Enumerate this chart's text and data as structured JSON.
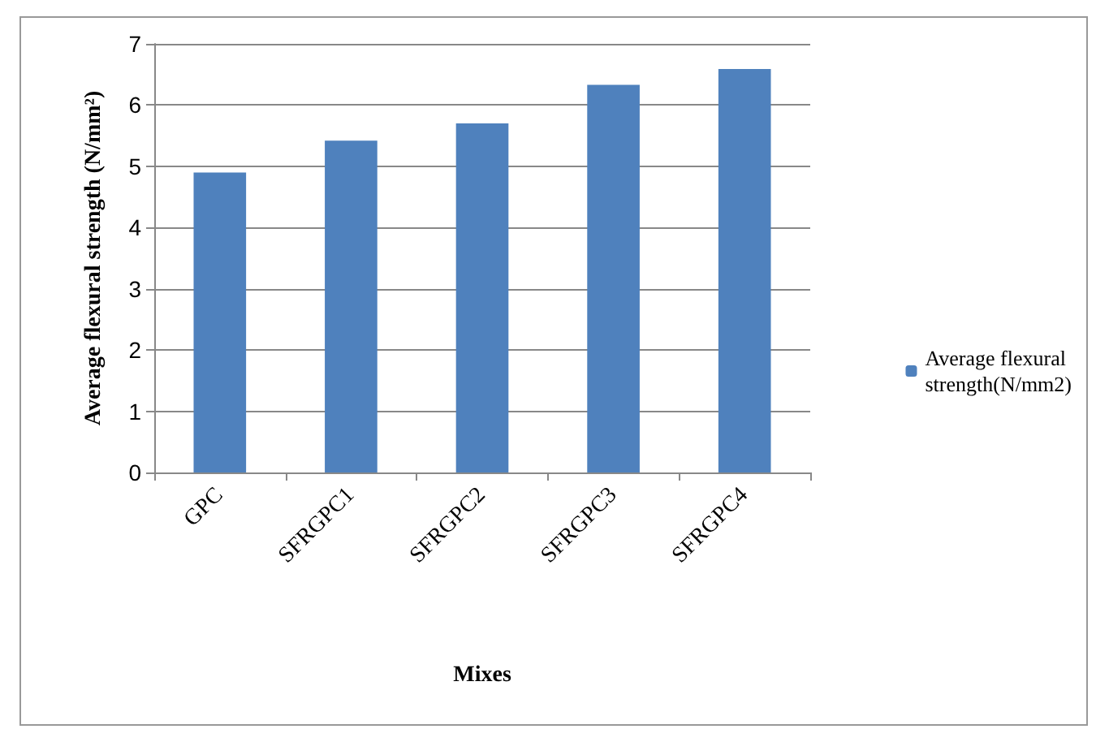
{
  "chart_data": {
    "type": "bar",
    "xlabel": "Mixes",
    "ylabel": "Average flexural strength (N/mm²)",
    "categories": [
      "GPC",
      "SFRGPC1",
      "SFRGPC2",
      "SFRGPC3",
      "SFRGPC4"
    ],
    "series": [
      {
        "name": "Average flexural strength(N/mm2)",
        "color": "#4f81bd",
        "values": [
          4.9,
          5.42,
          5.7,
          6.33,
          6.59
        ]
      }
    ],
    "ylim": [
      0,
      7
    ],
    "yticks": [
      0,
      1,
      2,
      3,
      4,
      5,
      6,
      7
    ],
    "grid": "y",
    "legend": "right"
  }
}
